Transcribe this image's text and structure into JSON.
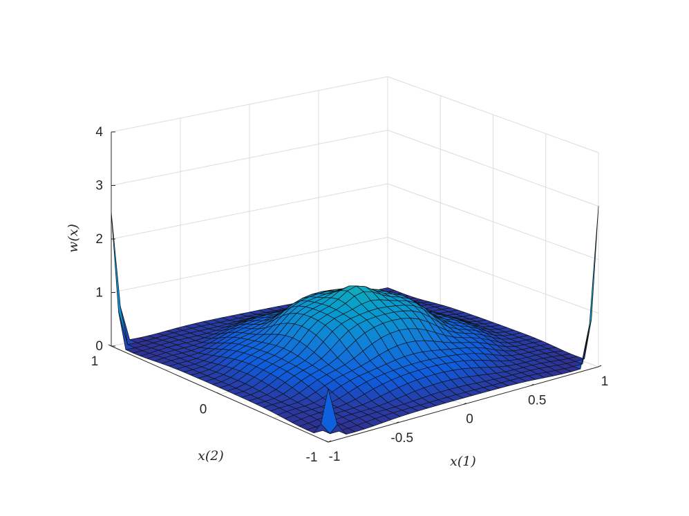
{
  "chart_data": {
    "type": "surface",
    "title": "",
    "xlabel": "x(1)",
    "ylabel": "x(2)",
    "zlabel": "w(x)",
    "xlim": [
      -1,
      1
    ],
    "ylim": [
      -1,
      1
    ],
    "zlim": [
      0,
      4
    ],
    "x_ticks": [
      "-1",
      "-0.5",
      "0",
      "0.5",
      "1"
    ],
    "y_ticks": [
      "-1",
      "0",
      "1"
    ],
    "z_ticks": [
      "0",
      "1",
      "2",
      "3",
      "4"
    ],
    "grid": true,
    "colormap": "parula",
    "surface_description": {
      "central_bump_peak": 1.35,
      "central_bump_center": [
        0,
        0
      ],
      "baseline": 0.05,
      "corner_spikes": [
        {
          "x": -1,
          "y": 1,
          "z": 2.5
        },
        {
          "x": 1,
          "y": -1,
          "z": 3.0
        },
        {
          "x": -1,
          "y": -1,
          "z": 1.0
        }
      ]
    }
  }
}
